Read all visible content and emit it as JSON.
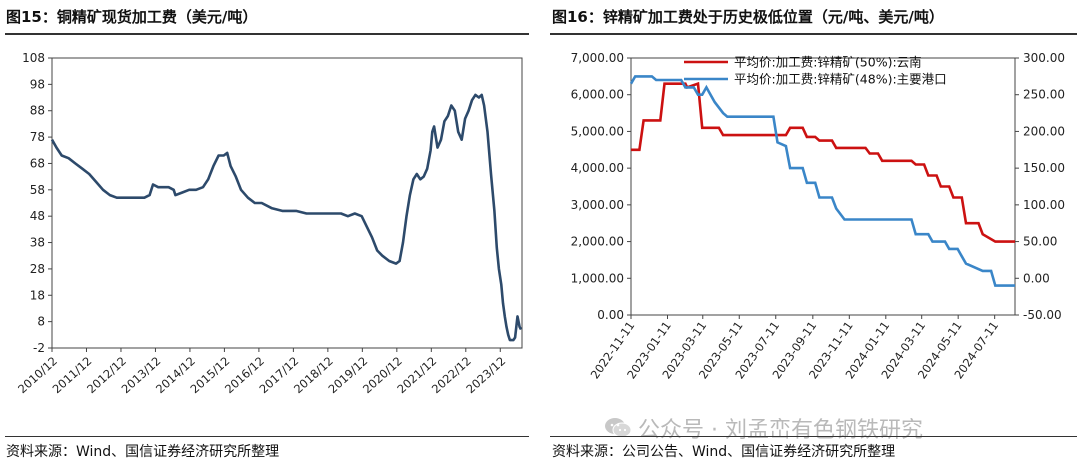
{
  "left_panel": {
    "title": "图15：铜精矿现货加工费（美元/吨）",
    "source": "资料来源：Wind、国信证券经济研究所整理"
  },
  "right_panel": {
    "title": "图16：锌精矿加工费处于历史极低位置（元/吨、美元/吨）",
    "source": "资料来源：公司公告、Wind、国信证券经济研究所整理"
  },
  "watermark": {
    "text": "公众号 · 刘孟峦有色钢铁研究",
    "icon": "wechat-icon"
  },
  "colors": {
    "copper": "#2d4a6b",
    "yunnan": "#cc1111",
    "port": "#3a86c8",
    "axis": "#444444"
  },
  "chart_data": [
    {
      "type": "line",
      "title": "",
      "xlabel": "",
      "ylabel": "",
      "ylim": [
        -2,
        108
      ],
      "yticks": [
        -2,
        8,
        18,
        28,
        38,
        48,
        58,
        68,
        78,
        88,
        98,
        108
      ],
      "x_start_year": 2010.92,
      "xticks": [
        {
          "label": "2010/12",
          "x": 2010.92
        },
        {
          "label": "2011/12",
          "x": 2011.92
        },
        {
          "label": "2012/12",
          "x": 2012.92
        },
        {
          "label": "2013/12",
          "x": 2013.92
        },
        {
          "label": "2014/12",
          "x": 2014.92
        },
        {
          "label": "2015/12",
          "x": 2015.92
        },
        {
          "label": "2016/12",
          "x": 2016.92
        },
        {
          "label": "2017/12",
          "x": 2017.92
        },
        {
          "label": "2018/12",
          "x": 2018.92
        },
        {
          "label": "2019/12",
          "x": 2019.92
        },
        {
          "label": "2020/12",
          "x": 2020.92
        },
        {
          "label": "2021/12",
          "x": 2021.92
        },
        {
          "label": "2022/12",
          "x": 2022.92
        },
        {
          "label": "2023/12",
          "x": 2023.92
        }
      ],
      "xlim": [
        2010.92,
        2024.55
      ],
      "series": [
        {
          "name": "铜精矿现货加工费",
          "points": [
            [
              2010.92,
              77
            ],
            [
              2011.05,
              74
            ],
            [
              2011.2,
              71
            ],
            [
              2011.4,
              70
            ],
            [
              2011.6,
              68
            ],
            [
              2011.8,
              66
            ],
            [
              2012.0,
              64
            ],
            [
              2012.2,
              61
            ],
            [
              2012.4,
              58
            ],
            [
              2012.6,
              56
            ],
            [
              2012.8,
              55
            ],
            [
              2013.2,
              55
            ],
            [
              2013.6,
              55
            ],
            [
              2013.75,
              56
            ],
            [
              2013.85,
              60
            ],
            [
              2014.0,
              59
            ],
            [
              2014.3,
              59
            ],
            [
              2014.45,
              58
            ],
            [
              2014.5,
              56
            ],
            [
              2014.7,
              57
            ],
            [
              2014.9,
              58
            ],
            [
              2015.1,
              58
            ],
            [
              2015.3,
              59
            ],
            [
              2015.45,
              62
            ],
            [
              2015.6,
              67
            ],
            [
              2015.75,
              71
            ],
            [
              2015.9,
              71
            ],
            [
              2016.0,
              72
            ],
            [
              2016.1,
              67
            ],
            [
              2016.25,
              63
            ],
            [
              2016.4,
              58
            ],
            [
              2016.6,
              55
            ],
            [
              2016.8,
              53
            ],
            [
              2017.0,
              53
            ],
            [
              2017.3,
              51
            ],
            [
              2017.6,
              50
            ],
            [
              2018.0,
              50
            ],
            [
              2018.3,
              49
            ],
            [
              2018.7,
              49
            ],
            [
              2019.0,
              49
            ],
            [
              2019.3,
              49
            ],
            [
              2019.5,
              48
            ],
            [
              2019.7,
              49
            ],
            [
              2019.9,
              48
            ],
            [
              2020.05,
              44
            ],
            [
              2020.2,
              40
            ],
            [
              2020.35,
              35
            ],
            [
              2020.5,
              33
            ],
            [
              2020.7,
              31
            ],
            [
              2020.9,
              30
            ],
            [
              2021.0,
              31
            ],
            [
              2021.1,
              38
            ],
            [
              2021.2,
              48
            ],
            [
              2021.3,
              56
            ],
            [
              2021.4,
              62
            ],
            [
              2021.5,
              64
            ],
            [
              2021.6,
              62
            ],
            [
              2021.7,
              63
            ],
            [
              2021.8,
              66
            ],
            [
              2021.9,
              73
            ],
            [
              2021.95,
              80
            ],
            [
              2022.0,
              82
            ],
            [
              2022.1,
              74
            ],
            [
              2022.2,
              77
            ],
            [
              2022.3,
              84
            ],
            [
              2022.4,
              86
            ],
            [
              2022.5,
              90
            ],
            [
              2022.6,
              88
            ],
            [
              2022.7,
              80
            ],
            [
              2022.8,
              77
            ],
            [
              2022.9,
              85
            ],
            [
              2023.0,
              88
            ],
            [
              2023.1,
              92
            ],
            [
              2023.2,
              94
            ],
            [
              2023.3,
              93
            ],
            [
              2023.38,
              94
            ],
            [
              2023.45,
              90
            ],
            [
              2023.55,
              80
            ],
            [
              2023.65,
              64
            ],
            [
              2023.75,
              50
            ],
            [
              2023.82,
              36
            ],
            [
              2023.88,
              28
            ],
            [
              2023.95,
              22
            ],
            [
              2024.0,
              15
            ],
            [
              2024.05,
              10
            ],
            [
              2024.1,
              6
            ],
            [
              2024.15,
              3
            ],
            [
              2024.2,
              1
            ],
            [
              2024.3,
              1
            ],
            [
              2024.35,
              2
            ],
            [
              2024.42,
              10
            ],
            [
              2024.48,
              6
            ],
            [
              2024.52,
              5
            ]
          ]
        }
      ]
    },
    {
      "type": "line",
      "title": "",
      "xlabel": "",
      "y_left": {
        "ylim": [
          0,
          7000
        ],
        "ticks": [
          "0.00",
          "1,000.00",
          "2,000.00",
          "3,000.00",
          "4,000.00",
          "5,000.00",
          "6,000.00",
          "7,000.00"
        ]
      },
      "y_right": {
        "ylim": [
          -50,
          300
        ],
        "ticks": [
          "-50.00",
          "0.00",
          "50.00",
          "100.00",
          "150.00",
          "200.00",
          "250.00",
          "300.00"
        ]
      },
      "xlim": [
        "2022-11-11",
        "2024-08-14"
      ],
      "xticks": [
        "2022-11-11",
        "2023-01-11",
        "2023-03-11",
        "2023-05-11",
        "2023-07-11",
        "2023-09-11",
        "2023-11-11",
        "2024-01-11",
        "2024-03-11",
        "2024-05-11",
        "2024-07-11"
      ],
      "legend": {
        "placement": "top-right-inside"
      },
      "series": [
        {
          "name": "平均价:加工费:锌精矿(50%):云南",
          "axis": "left",
          "points": [
            [
              "2022-11-11",
              4500
            ],
            [
              "2022-11-25",
              4500
            ],
            [
              "2022-12-02",
              5300
            ],
            [
              "2022-12-30",
              5300
            ],
            [
              "2023-01-06",
              6300
            ],
            [
              "2023-02-10",
              6300
            ],
            [
              "2023-02-13",
              6200
            ],
            [
              "2023-03-03",
              6300
            ],
            [
              "2023-03-10",
              5100
            ],
            [
              "2023-04-07",
              5100
            ],
            [
              "2023-04-14",
              4900
            ],
            [
              "2023-07-28",
              4900
            ],
            [
              "2023-08-04",
              5100
            ],
            [
              "2023-08-25",
              5100
            ],
            [
              "2023-09-01",
              4850
            ],
            [
              "2023-09-15",
              4850
            ],
            [
              "2023-09-22",
              4750
            ],
            [
              "2023-10-13",
              4750
            ],
            [
              "2023-10-20",
              4550
            ],
            [
              "2023-12-08",
              4550
            ],
            [
              "2023-12-15",
              4400
            ],
            [
              "2023-12-29",
              4400
            ],
            [
              "2024-01-05",
              4200
            ],
            [
              "2024-02-23",
              4200
            ],
            [
              "2024-03-01",
              4100
            ],
            [
              "2024-03-15",
              4100
            ],
            [
              "2024-03-22",
              3800
            ],
            [
              "2024-04-05",
              3800
            ],
            [
              "2024-04-12",
              3500
            ],
            [
              "2024-04-26",
              3500
            ],
            [
              "2024-05-03",
              3200
            ],
            [
              "2024-05-17",
              3200
            ],
            [
              "2024-05-24",
              2500
            ],
            [
              "2024-06-14",
              2500
            ],
            [
              "2024-06-21",
              2200
            ],
            [
              "2024-07-12",
              2000
            ],
            [
              "2024-08-14",
              2000
            ]
          ]
        },
        {
          "name": "平均价:加工费:锌精矿(48%):主要港口",
          "axis": "right",
          "points": [
            [
              "2022-11-11",
              265
            ],
            [
              "2022-11-18",
              275
            ],
            [
              "2022-12-16",
              275
            ],
            [
              "2022-12-23",
              270
            ],
            [
              "2023-02-03",
              270
            ],
            [
              "2023-02-10",
              260
            ],
            [
              "2023-02-24",
              260
            ],
            [
              "2023-03-03",
              250
            ],
            [
              "2023-03-10",
              250
            ],
            [
              "2023-03-17",
              260
            ],
            [
              "2023-03-31",
              240
            ],
            [
              "2023-04-14",
              225
            ],
            [
              "2023-04-21",
              220
            ],
            [
              "2023-07-07",
              220
            ],
            [
              "2023-07-14",
              185
            ],
            [
              "2023-07-28",
              180
            ],
            [
              "2023-08-04",
              150
            ],
            [
              "2023-08-25",
              150
            ],
            [
              "2023-09-01",
              130
            ],
            [
              "2023-09-15",
              130
            ],
            [
              "2023-09-22",
              110
            ],
            [
              "2023-10-13",
              110
            ],
            [
              "2023-10-20",
              95
            ],
            [
              "2023-11-03",
              80
            ],
            [
              "2024-02-23",
              80
            ],
            [
              "2024-03-01",
              60
            ],
            [
              "2024-03-22",
              60
            ],
            [
              "2024-03-29",
              50
            ],
            [
              "2024-04-19",
              50
            ],
            [
              "2024-04-26",
              40
            ],
            [
              "2024-05-10",
              40
            ],
            [
              "2024-05-17",
              30
            ],
            [
              "2024-05-24",
              20
            ],
            [
              "2024-06-21",
              10
            ],
            [
              "2024-07-05",
              10
            ],
            [
              "2024-07-12",
              -10
            ],
            [
              "2024-08-14",
              -10
            ]
          ]
        }
      ]
    }
  ]
}
